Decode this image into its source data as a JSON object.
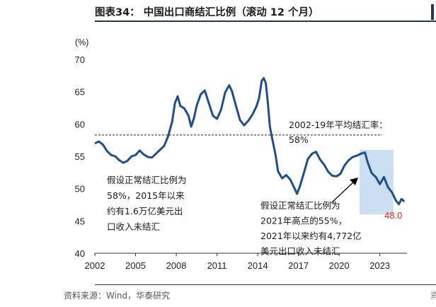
{
  "header": {
    "title": "图表34： 中国出口商结汇比例（滚动 12 个月）"
  },
  "footer": {
    "source": "资料来源：Wind，华泰研究"
  },
  "chart_data": {
    "type": "line",
    "unit_label": "(%)",
    "ylim": [
      40,
      70
    ],
    "yticks": [
      "40",
      "45",
      "50",
      "55",
      "60",
      "65",
      "70"
    ],
    "xlim": [
      2002,
      2025
    ],
    "xticks": [
      "2002",
      "2005",
      "2008",
      "2011",
      "2014",
      "2017",
      "2020",
      "2023"
    ],
    "grid": false,
    "series": [
      {
        "color": "#1f4e8c",
        "x": [
          2002.0,
          2002.3,
          2002.6,
          2002.9,
          2003.2,
          2003.5,
          2003.8,
          2004.1,
          2004.4,
          2004.7,
          2005.0,
          2005.3,
          2005.6,
          2005.9,
          2006.2,
          2006.5,
          2006.8,
          2007.1,
          2007.4,
          2007.7,
          2007.9,
          2008.1,
          2008.3,
          2008.6,
          2008.9,
          2009.1,
          2009.3,
          2009.5,
          2009.8,
          2010.1,
          2010.4,
          2010.7,
          2011.0,
          2011.3,
          2011.6,
          2011.9,
          2012.1,
          2012.4,
          2012.7,
          2013.0,
          2013.3,
          2013.6,
          2013.9,
          2014.1,
          2014.3,
          2014.45,
          2014.6,
          2014.75,
          2014.9,
          2015.1,
          2015.3,
          2015.5,
          2015.8,
          2016.1,
          2016.4,
          2016.7,
          2016.9,
          2017.1,
          2017.4,
          2017.7,
          2018.0,
          2018.3,
          2018.6,
          2018.9,
          2019.2,
          2019.5,
          2019.8,
          2020.1,
          2020.4,
          2020.7,
          2021.0,
          2021.3,
          2021.6,
          2021.9,
          2022.1,
          2022.4,
          2022.7,
          2023.0,
          2023.3,
          2023.6,
          2023.9,
          2024.2,
          2024.4,
          2024.6,
          2024.8
        ],
        "values": [
          57.0,
          57.3,
          56.8,
          55.8,
          55.2,
          55.0,
          54.4,
          54.0,
          54.3,
          55.0,
          55.2,
          55.9,
          55.3,
          54.9,
          54.8,
          55.4,
          56.0,
          56.6,
          58.1,
          60.4,
          63.2,
          64.3,
          62.8,
          62.4,
          61.3,
          59.6,
          60.9,
          62.8,
          64.6,
          65.2,
          63.2,
          61.3,
          60.8,
          62.2,
          64.9,
          66.0,
          65.1,
          62.8,
          60.6,
          59.8,
          60.5,
          61.4,
          62.7,
          64.0,
          66.7,
          67.1,
          66.3,
          63.2,
          59.6,
          57.4,
          55.4,
          52.7,
          51.6,
          52.1,
          51.4,
          50.1,
          49.2,
          50.3,
          52.4,
          54.6,
          55.4,
          55.7,
          54.5,
          53.7,
          52.6,
          52.0,
          51.9,
          52.3,
          53.6,
          54.4,
          54.9,
          55.1,
          55.4,
          55.6,
          54.1,
          52.4,
          51.8,
          50.7,
          51.8,
          50.2,
          49.4,
          48.1,
          47.6,
          48.4,
          48.0
        ]
      }
    ],
    "reference_line": {
      "y": 58.3,
      "style": "dashed",
      "color": "#222222"
    },
    "reference_label": [
      "2002-19年平均结汇率：",
      "58%"
    ],
    "highlight_region": {
      "x0": 2021.5,
      "x1": 2024.0,
      "y0": 46,
      "y1": 56,
      "color": "#b9d3ee"
    },
    "annotations": [
      {
        "lines": [
          "假设正常结汇比例为",
          "58%，2015年以来",
          "约有1.6万亿美元出",
          "口收入未结汇"
        ]
      },
      {
        "lines": [
          "假设正常结汇比例为",
          "2021年高点的55%，",
          "2021年以来约有4,772亿",
          "美元出口收入未结汇"
        ]
      }
    ],
    "last_value_label": {
      "text": "48.0",
      "color": "#e8201d"
    }
  }
}
